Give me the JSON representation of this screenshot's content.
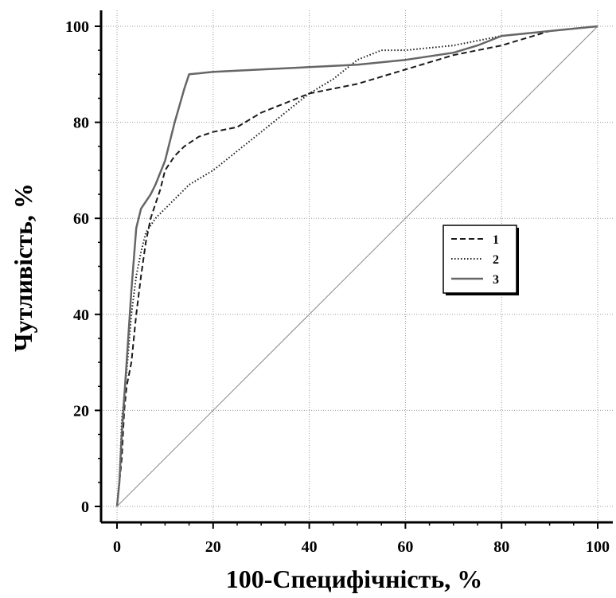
{
  "chart_data": {
    "type": "line",
    "xlabel": "100-Специфічність, %",
    "ylabel": "Чутливість, %",
    "xlim": [
      0,
      100
    ],
    "ylim": [
      0,
      100
    ],
    "x_ticks": [
      0,
      20,
      40,
      60,
      80,
      100
    ],
    "y_ticks": [
      0,
      20,
      40,
      60,
      80,
      100
    ],
    "grid": true,
    "legend_position": "right-middle",
    "series": [
      {
        "name": "1",
        "style": "dashed",
        "color": "#1a1a1a",
        "points": [
          [
            0,
            0
          ],
          [
            1,
            10
          ],
          [
            1.5,
            20
          ],
          [
            2,
            25
          ],
          [
            3,
            30
          ],
          [
            4,
            40
          ],
          [
            5,
            48
          ],
          [
            6,
            55
          ],
          [
            7,
            60
          ],
          [
            8,
            63
          ],
          [
            9,
            66
          ],
          [
            10,
            70
          ],
          [
            12,
            73
          ],
          [
            14,
            75
          ],
          [
            17,
            77
          ],
          [
            20,
            78
          ],
          [
            25,
            79
          ],
          [
            30,
            82
          ],
          [
            35,
            84
          ],
          [
            40,
            86
          ],
          [
            50,
            88
          ],
          [
            60,
            91
          ],
          [
            70,
            94
          ],
          [
            80,
            96
          ],
          [
            90,
            99
          ],
          [
            100,
            100
          ]
        ]
      },
      {
        "name": "2",
        "style": "dotted",
        "color": "#1a1a1a",
        "points": [
          [
            0,
            0
          ],
          [
            0.5,
            5
          ],
          [
            1,
            18
          ],
          [
            2,
            28
          ],
          [
            3,
            40
          ],
          [
            4,
            48
          ],
          [
            5,
            53
          ],
          [
            6,
            57
          ],
          [
            8,
            60
          ],
          [
            10,
            62
          ],
          [
            12,
            64
          ],
          [
            15,
            67
          ],
          [
            20,
            70
          ],
          [
            25,
            74
          ],
          [
            30,
            78
          ],
          [
            35,
            82
          ],
          [
            40,
            86
          ],
          [
            45,
            89
          ],
          [
            50,
            93
          ],
          [
            55,
            95
          ],
          [
            60,
            95
          ],
          [
            70,
            96
          ],
          [
            80,
            98
          ],
          [
            90,
            99
          ],
          [
            100,
            100
          ]
        ]
      },
      {
        "name": "3",
        "style": "solid",
        "color": "#666666",
        "points": [
          [
            0,
            0
          ],
          [
            0.5,
            5
          ],
          [
            1,
            15
          ],
          [
            2,
            30
          ],
          [
            3,
            45
          ],
          [
            4,
            58
          ],
          [
            5,
            62
          ],
          [
            7,
            65
          ],
          [
            8,
            67
          ],
          [
            10,
            72
          ],
          [
            12,
            80
          ],
          [
            14,
            87
          ],
          [
            15,
            90
          ],
          [
            20,
            90.5
          ],
          [
            30,
            91
          ],
          [
            40,
            91.5
          ],
          [
            50,
            92
          ],
          [
            60,
            93
          ],
          [
            70,
            94.5
          ],
          [
            75,
            96
          ],
          [
            80,
            98
          ],
          [
            90,
            99
          ],
          [
            100,
            100
          ]
        ]
      },
      {
        "name": "",
        "style": "solid-thin",
        "color": "#888888",
        "points": [
          [
            0,
            0
          ],
          [
            100,
            100
          ]
        ]
      }
    ]
  }
}
